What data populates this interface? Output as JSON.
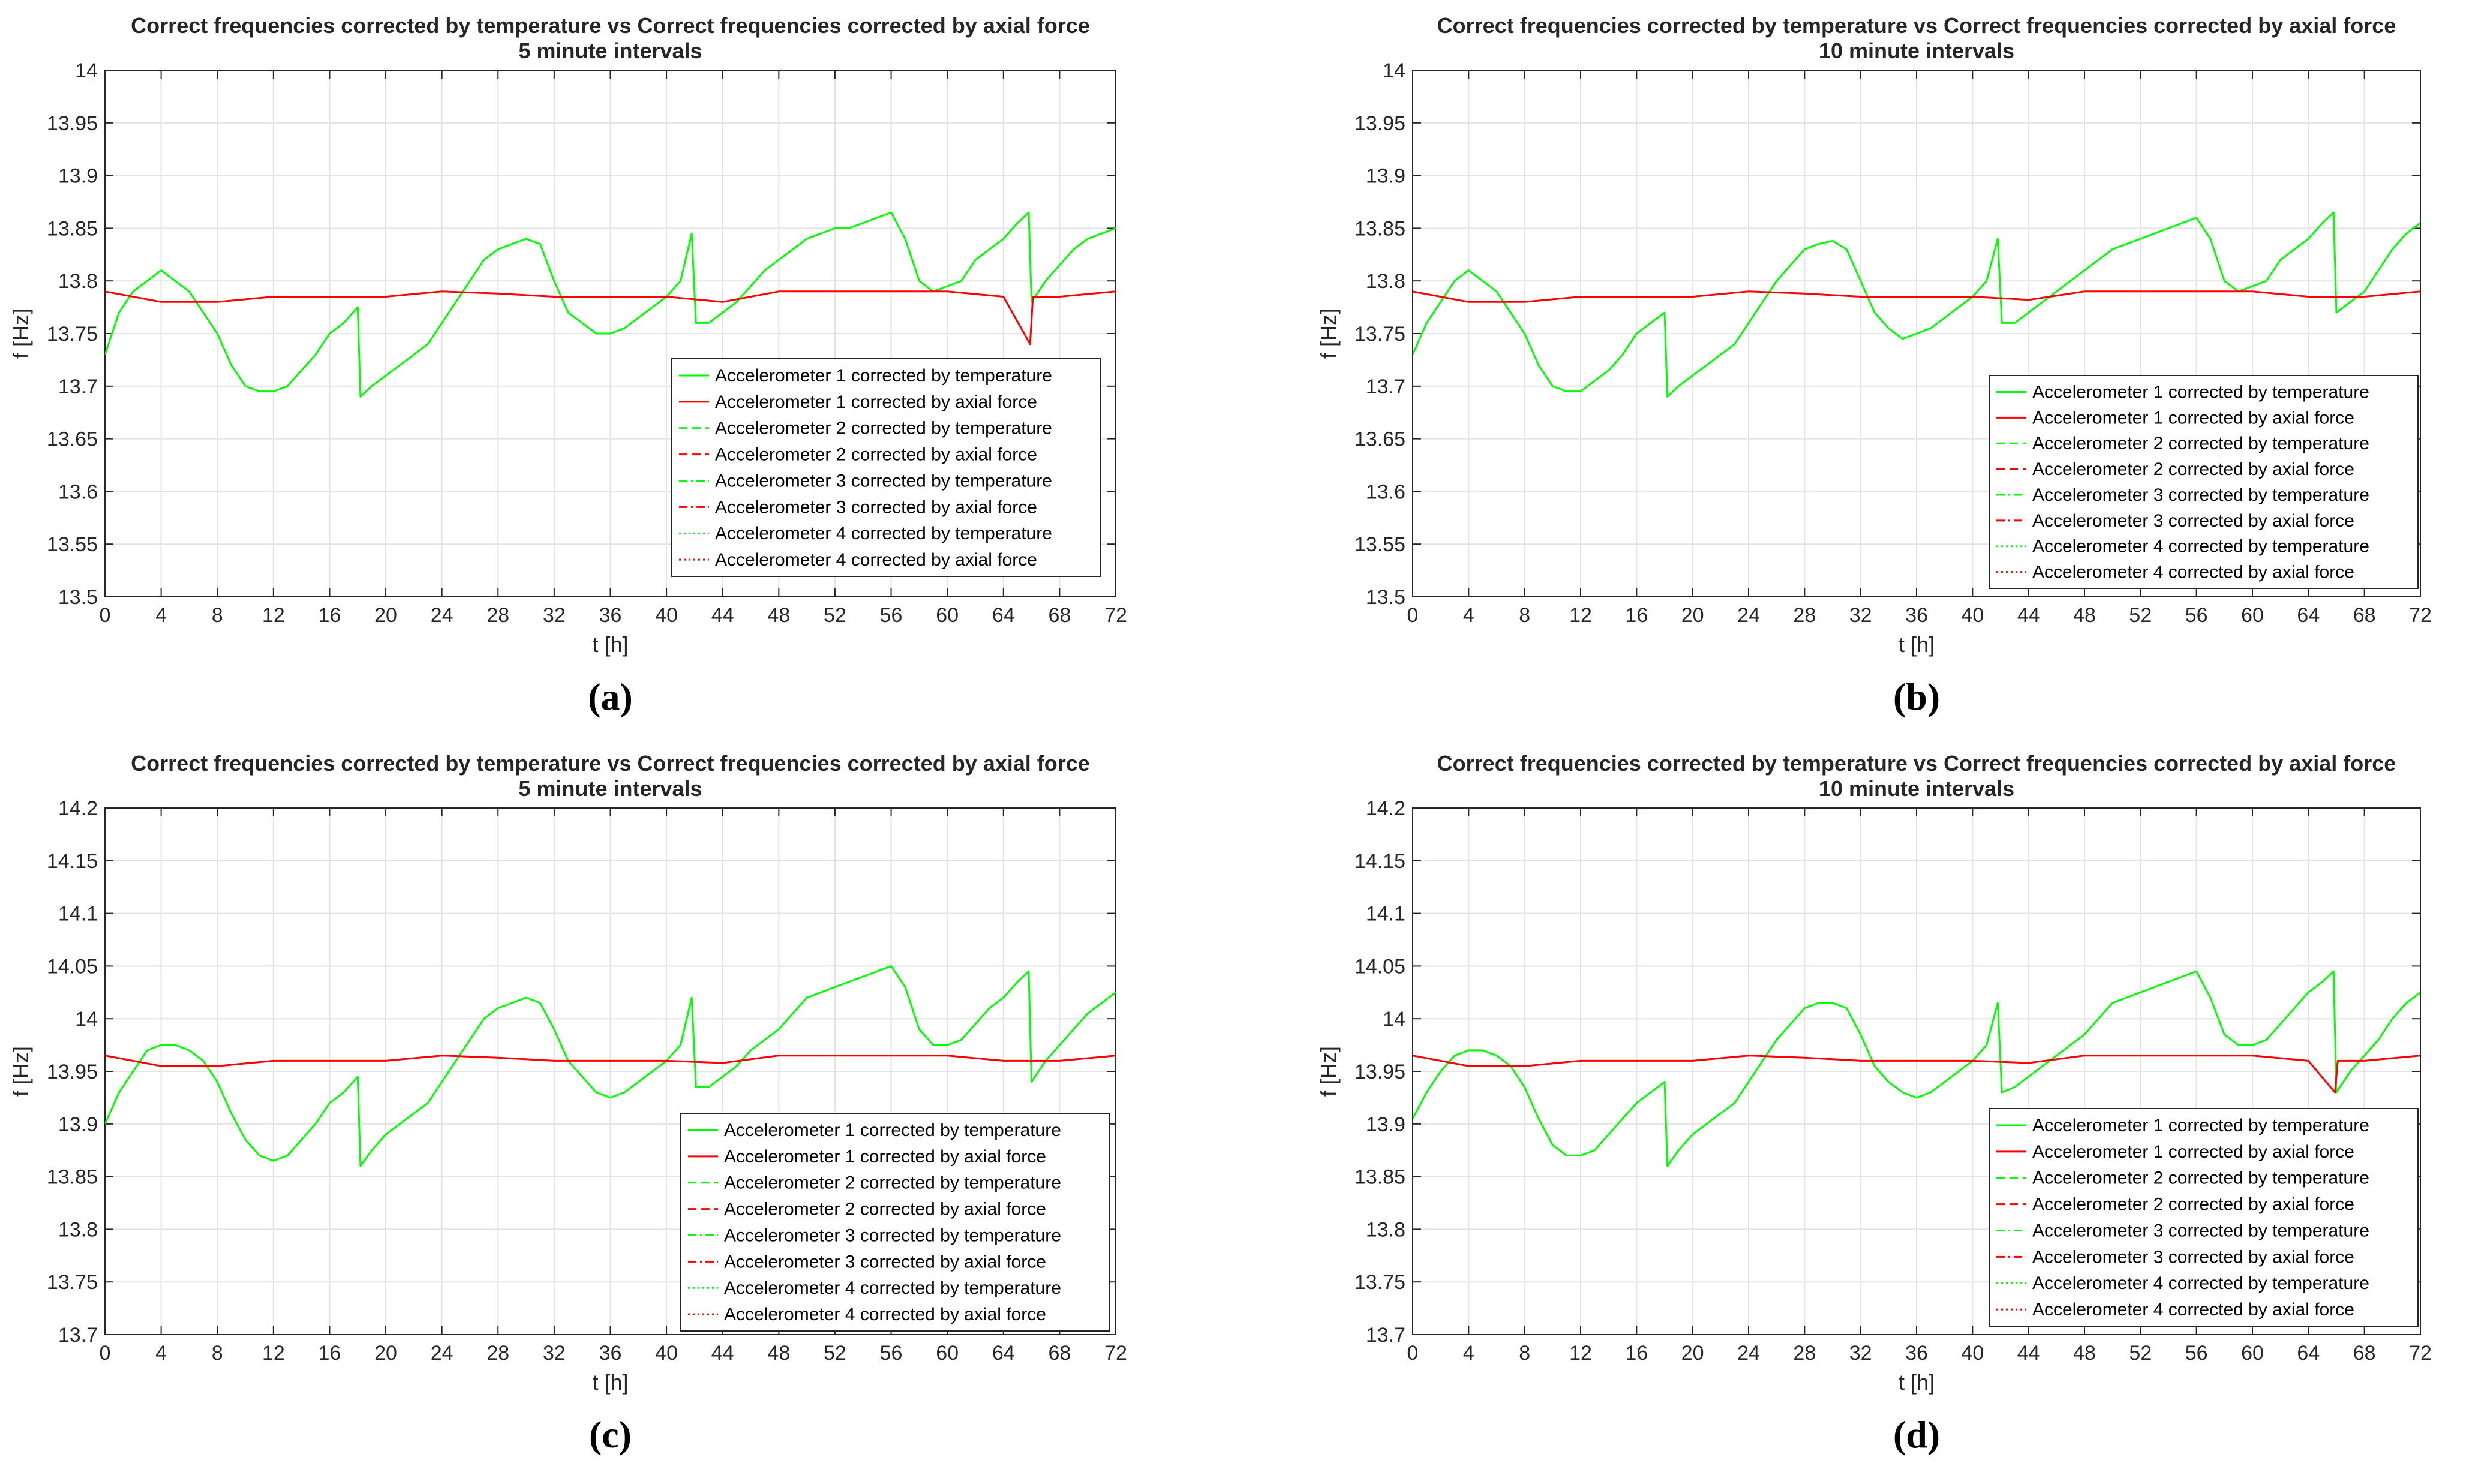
{
  "colors": {
    "temperature": "#00ff00",
    "axial": "#ff0000",
    "grid": "#e3e3e3",
    "axis": "#262626"
  },
  "legend_entries": [
    {
      "label": "Accelerometer 1 corrected by temperature",
      "color": "#00ff00",
      "dash": "solid"
    },
    {
      "label": "Accelerometer 1 corrected by axial force",
      "color": "#ff0000",
      "dash": "solid"
    },
    {
      "label": "Accelerometer 2 corrected by temperature",
      "color": "#00ff00",
      "dash": "dashed"
    },
    {
      "label": "Accelerometer 2 corrected by axial force",
      "color": "#ff0000",
      "dash": "dashed"
    },
    {
      "label": "Accelerometer 3 corrected by temperature",
      "color": "#00ff00",
      "dash": "dashdot"
    },
    {
      "label": "Accelerometer 3 corrected by axial force",
      "color": "#ff0000",
      "dash": "dashdot"
    },
    {
      "label": "Accelerometer 4 corrected by temperature",
      "color": "#00ff00",
      "dash": "dotted"
    },
    {
      "label": "Accelerometer 4 corrected by axial force",
      "color": "#ff0000",
      "dash": "dotted"
    }
  ],
  "chart_data": [
    {
      "panel": "(a)",
      "type": "line",
      "title": "Correct frequencies corrected by temperature vs Correct frequencies corrected by axial force",
      "subtitle": "5 minute intervals",
      "xlabel": "t [h]",
      "ylabel": "f [Hz]",
      "xlim": [
        0,
        72
      ],
      "ylim": [
        13.5,
        14
      ],
      "xticks": [
        "0",
        "4",
        "8",
        "12",
        "16",
        "20",
        "24",
        "28",
        "32",
        "36",
        "40",
        "44",
        "48",
        "52",
        "56",
        "60",
        "64",
        "68",
        "72"
      ],
      "yticks": [
        "13.5",
        "13.55",
        "13.6",
        "13.65",
        "13.7",
        "13.75",
        "13.8",
        "13.85",
        "13.9",
        "13.95",
        "14"
      ],
      "grid": true,
      "legend_position": "lower-right",
      "series": [
        {
          "name": "Accelerometer 1 corrected by temperature",
          "x": [
            0,
            1,
            2,
            3,
            4,
            5,
            6,
            7,
            8,
            9,
            10,
            11,
            12,
            13,
            14,
            15,
            16,
            17,
            18,
            18.2,
            19,
            20,
            21,
            22,
            23,
            24,
            25,
            26,
            27,
            28,
            29,
            30,
            31,
            32,
            33,
            34,
            35,
            36,
            37,
            38,
            39,
            40,
            41,
            41.8,
            42.1,
            43,
            44,
            45,
            46,
            47,
            48,
            49,
            50,
            51,
            52,
            53,
            54,
            55,
            56,
            57,
            58,
            59,
            60,
            61,
            62,
            63,
            64,
            65,
            65.8,
            66,
            67,
            68,
            69,
            70,
            71,
            72
          ],
          "y": [
            13.73,
            13.77,
            13.79,
            13.8,
            13.81,
            13.8,
            13.79,
            13.77,
            13.75,
            13.72,
            13.7,
            13.695,
            13.695,
            13.7,
            13.715,
            13.73,
            13.75,
            13.76,
            13.775,
            13.69,
            13.7,
            13.71,
            13.72,
            13.73,
            13.74,
            13.76,
            13.78,
            13.8,
            13.82,
            13.83,
            13.835,
            13.84,
            13.835,
            13.8,
            13.77,
            13.76,
            13.75,
            13.75,
            13.755,
            13.765,
            13.775,
            13.785,
            13.8,
            13.845,
            13.76,
            13.76,
            13.77,
            13.78,
            13.795,
            13.81,
            13.82,
            13.83,
            13.84,
            13.845,
            13.85,
            13.85,
            13.855,
            13.86,
            13.865,
            13.84,
            13.8,
            13.79,
            13.795,
            13.8,
            13.82,
            13.83,
            13.84,
            13.855,
            13.865,
            13.78,
            13.8,
            13.815,
            13.83,
            13.84,
            13.845,
            13.85
          ]
        },
        {
          "name": "Accelerometer 1 corrected by axial force",
          "x": [
            0,
            4,
            8,
            12,
            16,
            20,
            24,
            28,
            32,
            36,
            40,
            44,
            48,
            52,
            56,
            60,
            64,
            65.9,
            66.1,
            68,
            72
          ],
          "y": [
            13.79,
            13.78,
            13.78,
            13.785,
            13.785,
            13.785,
            13.79,
            13.788,
            13.785,
            13.785,
            13.785,
            13.78,
            13.79,
            13.79,
            13.79,
            13.79,
            13.785,
            13.74,
            13.785,
            13.785,
            13.79
          ]
        }
      ]
    },
    {
      "panel": "(b)",
      "type": "line",
      "title": "Correct frequencies corrected by temperature vs Correct frequencies corrected by axial force",
      "subtitle": "10 minute intervals",
      "xlabel": "t [h]",
      "ylabel": "f [Hz]",
      "xlim": [
        0,
        72
      ],
      "ylim": [
        13.5,
        14
      ],
      "xticks": [
        "0",
        "4",
        "8",
        "12",
        "16",
        "20",
        "24",
        "28",
        "32",
        "36",
        "40",
        "44",
        "48",
        "52",
        "56",
        "60",
        "64",
        "68",
        "72"
      ],
      "yticks": [
        "13.5",
        "13.55",
        "13.6",
        "13.65",
        "13.7",
        "13.75",
        "13.8",
        "13.85",
        "13.9",
        "13.95",
        "14"
      ],
      "grid": true,
      "legend_position": "lower-right",
      "series": [
        {
          "name": "Accelerometer 1 corrected by temperature",
          "x": [
            0,
            1,
            2,
            3,
            4,
            5,
            6,
            7,
            8,
            9,
            10,
            11,
            12,
            13,
            14,
            15,
            16,
            17,
            18,
            18.2,
            19,
            20,
            21,
            22,
            23,
            24,
            25,
            26,
            27,
            28,
            29,
            30,
            31,
            32,
            33,
            34,
            35,
            36,
            37,
            38,
            39,
            40,
            41,
            41.8,
            42.1,
            43,
            44,
            45,
            46,
            47,
            48,
            49,
            50,
            51,
            52,
            53,
            54,
            55,
            56,
            57,
            58,
            59,
            60,
            61,
            62,
            63,
            64,
            65,
            65.8,
            66,
            67,
            68,
            69,
            70,
            71,
            72
          ],
          "y": [
            13.73,
            13.76,
            13.78,
            13.8,
            13.81,
            13.8,
            13.79,
            13.77,
            13.75,
            13.72,
            13.7,
            13.695,
            13.695,
            13.705,
            13.715,
            13.73,
            13.75,
            13.76,
            13.77,
            13.69,
            13.7,
            13.71,
            13.72,
            13.73,
            13.74,
            13.76,
            13.78,
            13.8,
            13.815,
            13.83,
            13.835,
            13.838,
            13.83,
            13.8,
            13.77,
            13.755,
            13.745,
            13.75,
            13.755,
            13.765,
            13.775,
            13.785,
            13.8,
            13.84,
            13.76,
            13.76,
            13.77,
            13.78,
            13.79,
            13.8,
            13.81,
            13.82,
            13.83,
            13.835,
            13.84,
            13.845,
            13.85,
            13.855,
            13.86,
            13.84,
            13.8,
            13.79,
            13.795,
            13.8,
            13.82,
            13.83,
            13.84,
            13.855,
            13.865,
            13.77,
            13.78,
            13.79,
            13.81,
            13.83,
            13.845,
            13.855
          ]
        },
        {
          "name": "Accelerometer 1 corrected by axial force",
          "x": [
            0,
            4,
            8,
            12,
            16,
            20,
            24,
            28,
            32,
            36,
            40,
            44,
            48,
            52,
            56,
            60,
            64,
            68,
            72
          ],
          "y": [
            13.79,
            13.78,
            13.78,
            13.785,
            13.785,
            13.785,
            13.79,
            13.788,
            13.785,
            13.785,
            13.785,
            13.782,
            13.79,
            13.79,
            13.79,
            13.79,
            13.785,
            13.785,
            13.79
          ]
        }
      ]
    },
    {
      "panel": "(c)",
      "type": "line",
      "title": "Correct frequencies corrected by temperature vs Correct frequencies corrected by axial force",
      "subtitle": "5 minute intervals",
      "xlabel": "t [h]",
      "ylabel": "f [Hz]",
      "xlim": [
        0,
        72
      ],
      "ylim": [
        13.7,
        14.2
      ],
      "xticks": [
        "0",
        "4",
        "8",
        "12",
        "16",
        "20",
        "24",
        "28",
        "32",
        "36",
        "40",
        "44",
        "48",
        "52",
        "56",
        "60",
        "64",
        "68",
        "72"
      ],
      "yticks": [
        "13.7",
        "13.75",
        "13.8",
        "13.85",
        "13.9",
        "13.95",
        "14",
        "14.05",
        "14.1",
        "14.15",
        "14.2"
      ],
      "grid": true,
      "legend_position": "lower-right",
      "series": [
        {
          "name": "Accelerometer 1 corrected by temperature",
          "x": [
            0,
            1,
            2,
            3,
            4,
            5,
            6,
            7,
            8,
            9,
            10,
            11,
            12,
            13,
            14,
            15,
            16,
            17,
            18,
            18.2,
            19,
            20,
            21,
            22,
            23,
            24,
            25,
            26,
            27,
            28,
            29,
            30,
            31,
            32,
            33,
            34,
            35,
            36,
            37,
            38,
            39,
            40,
            41,
            41.8,
            42.1,
            43,
            44,
            45,
            46,
            47,
            48,
            49,
            50,
            51,
            52,
            53,
            54,
            55,
            56,
            57,
            58,
            59,
            60,
            61,
            62,
            63,
            64,
            65,
            65.8,
            66,
            67,
            68,
            69,
            70,
            71,
            72
          ],
          "y": [
            13.9,
            13.93,
            13.95,
            13.97,
            13.975,
            13.975,
            13.97,
            13.96,
            13.94,
            13.91,
            13.885,
            13.87,
            13.865,
            13.87,
            13.885,
            13.9,
            13.92,
            13.93,
            13.945,
            13.86,
            13.875,
            13.89,
            13.9,
            13.91,
            13.92,
            13.94,
            13.96,
            13.98,
            14,
            14.01,
            14.015,
            14.02,
            14.015,
            13.99,
            13.96,
            13.945,
            13.93,
            13.925,
            13.93,
            13.94,
            13.95,
            13.96,
            13.975,
            14.02,
            13.935,
            13.935,
            13.945,
            13.955,
            13.97,
            13.98,
            13.99,
            14.005,
            14.02,
            14.025,
            14.03,
            14.035,
            14.04,
            14.045,
            14.05,
            14.03,
            13.99,
            13.975,
            13.975,
            13.98,
            13.995,
            14.01,
            14.02,
            14.035,
            14.045,
            13.94,
            13.96,
            13.975,
            13.99,
            14.005,
            14.015,
            14.025
          ]
        },
        {
          "name": "Accelerometer 1 corrected by axial force",
          "x": [
            0,
            4,
            8,
            12,
            16,
            20,
            24,
            28,
            32,
            36,
            40,
            44,
            48,
            52,
            56,
            60,
            64,
            68,
            72
          ],
          "y": [
            13.965,
            13.955,
            13.955,
            13.96,
            13.96,
            13.96,
            13.965,
            13.963,
            13.96,
            13.96,
            13.96,
            13.958,
            13.965,
            13.965,
            13.965,
            13.965,
            13.96,
            13.96,
            13.965
          ]
        }
      ]
    },
    {
      "panel": "(d)",
      "type": "line",
      "title": "Correct frequencies corrected by temperature vs Correct frequencies corrected by axial force",
      "subtitle": "10 minute intervals",
      "xlabel": "t [h]",
      "ylabel": "f [Hz]",
      "xlim": [
        0,
        72
      ],
      "ylim": [
        13.7,
        14.2
      ],
      "xticks": [
        "0",
        "4",
        "8",
        "12",
        "16",
        "20",
        "24",
        "28",
        "32",
        "36",
        "40",
        "44",
        "48",
        "52",
        "56",
        "60",
        "64",
        "68",
        "72"
      ],
      "yticks": [
        "13.7",
        "13.75",
        "13.8",
        "13.85",
        "13.9",
        "13.95",
        "14",
        "14.05",
        "14.1",
        "14.15",
        "14.2"
      ],
      "grid": true,
      "legend_position": "lower-right",
      "series": [
        {
          "name": "Accelerometer 1 corrected by temperature",
          "x": [
            0,
            1,
            2,
            3,
            4,
            5,
            6,
            7,
            8,
            9,
            10,
            11,
            12,
            13,
            14,
            15,
            16,
            17,
            18,
            18.2,
            19,
            20,
            21,
            22,
            23,
            24,
            25,
            26,
            27,
            28,
            29,
            30,
            31,
            32,
            33,
            34,
            35,
            36,
            37,
            38,
            39,
            40,
            41,
            41.8,
            42.1,
            43,
            44,
            45,
            46,
            47,
            48,
            49,
            50,
            51,
            52,
            53,
            54,
            55,
            56,
            57,
            58,
            59,
            60,
            61,
            62,
            63,
            64,
            65,
            65.8,
            66,
            67,
            68,
            69,
            70,
            71,
            72
          ],
          "y": [
            13.905,
            13.93,
            13.95,
            13.965,
            13.97,
            13.97,
            13.965,
            13.955,
            13.935,
            13.905,
            13.88,
            13.87,
            13.87,
            13.875,
            13.89,
            13.905,
            13.92,
            13.93,
            13.94,
            13.86,
            13.875,
            13.89,
            13.9,
            13.91,
            13.92,
            13.94,
            13.96,
            13.98,
            13.995,
            14.01,
            14.015,
            14.015,
            14.01,
            13.985,
            13.955,
            13.94,
            13.93,
            13.925,
            13.93,
            13.94,
            13.95,
            13.96,
            13.975,
            14.015,
            13.93,
            13.935,
            13.945,
            13.955,
            13.965,
            13.975,
            13.985,
            14,
            14.015,
            14.02,
            14.025,
            14.03,
            14.035,
            14.04,
            14.045,
            14.02,
            13.985,
            13.975,
            13.975,
            13.98,
            13.995,
            14.01,
            14.025,
            14.035,
            14.045,
            13.93,
            13.95,
            13.965,
            13.98,
            14,
            14.015,
            14.025
          ]
        },
        {
          "name": "Accelerometer 1 corrected by axial force",
          "x": [
            0,
            4,
            8,
            12,
            16,
            20,
            24,
            28,
            32,
            36,
            40,
            44,
            48,
            52,
            56,
            60,
            64,
            65.9,
            66.1,
            68,
            72
          ],
          "y": [
            13.965,
            13.955,
            13.955,
            13.96,
            13.96,
            13.96,
            13.965,
            13.963,
            13.96,
            13.96,
            13.96,
            13.958,
            13.965,
            13.965,
            13.965,
            13.965,
            13.96,
            13.93,
            13.96,
            13.96,
            13.965
          ]
        }
      ]
    }
  ]
}
